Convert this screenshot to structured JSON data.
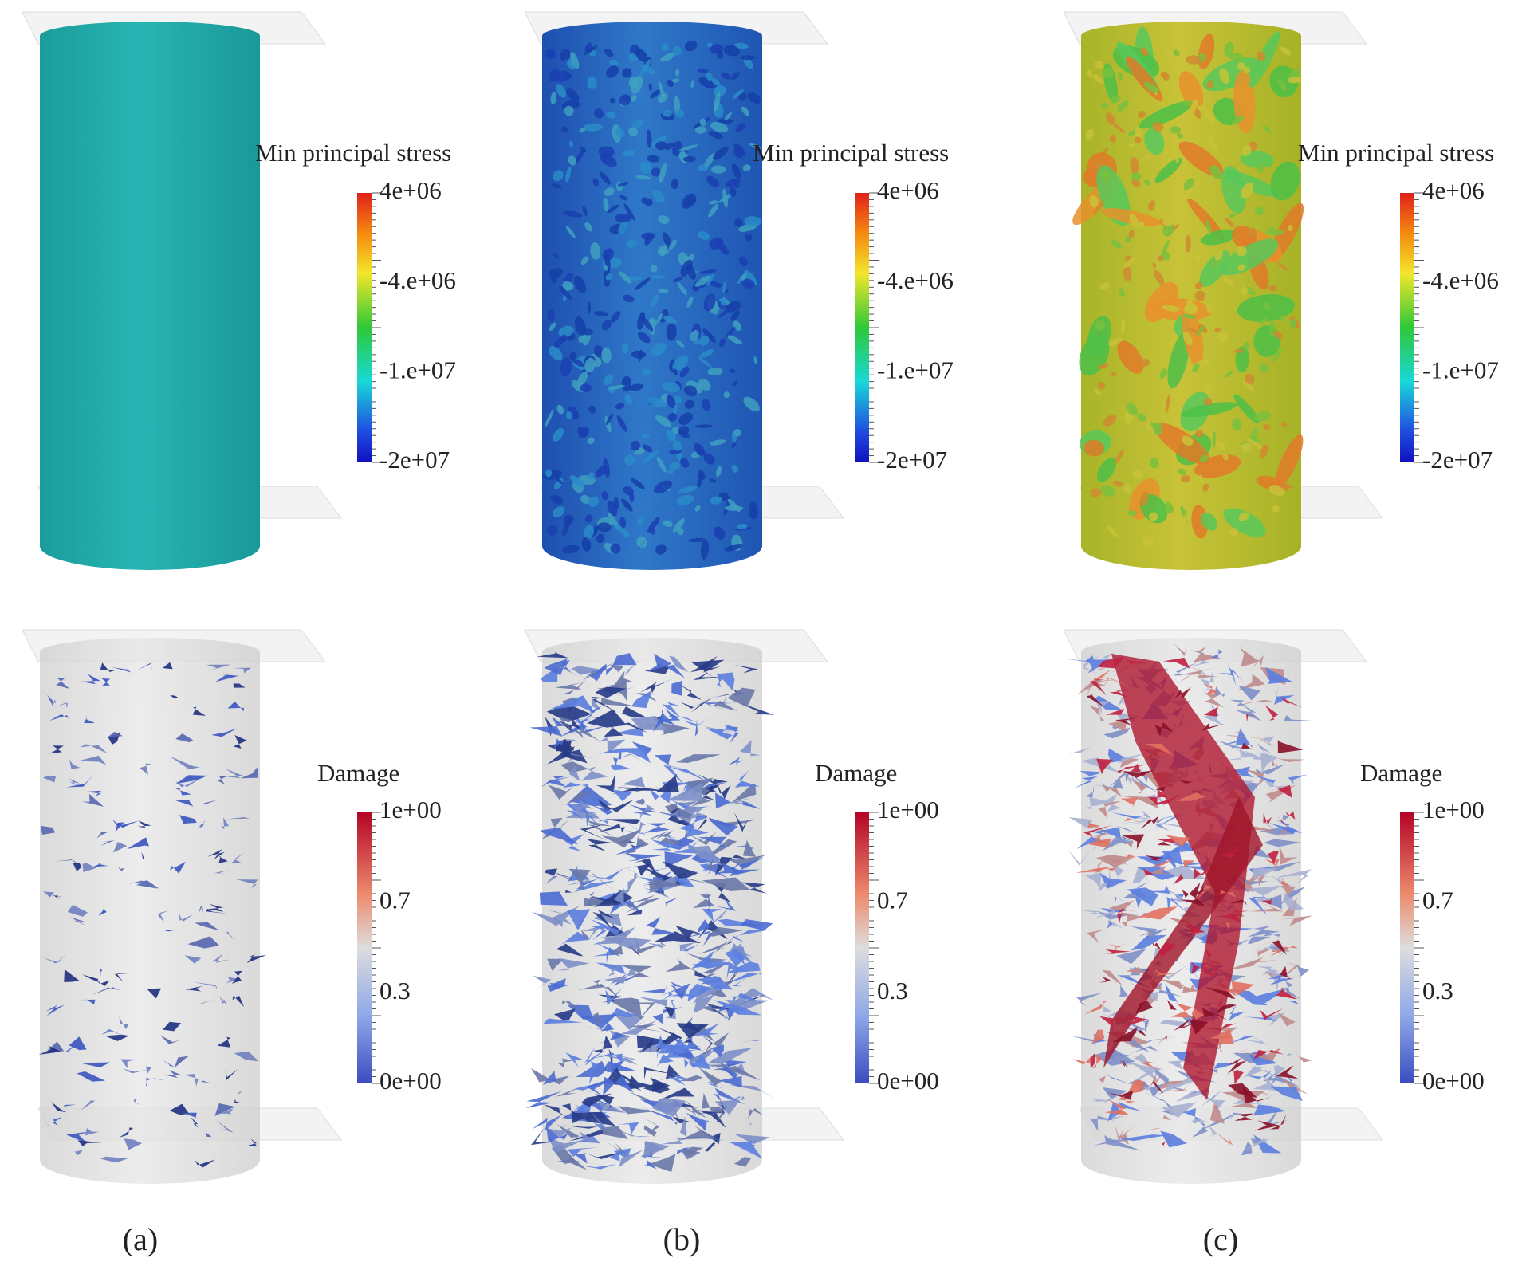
{
  "panels": [
    {
      "label": "(a)",
      "stress_legend": {
        "title": "Min principal stress",
        "ticks": [
          "4e+06",
          "-4.e+06",
          "-1.e+07",
          "-2e+07"
        ]
      },
      "damage_legend": {
        "title": "Damage",
        "ticks": [
          "1e+00",
          "0.7",
          "0.3",
          "0e+00"
        ]
      }
    },
    {
      "label": "(b)",
      "stress_legend": {
        "title": "Min principal stress",
        "ticks": [
          "4e+06",
          "-4.e+06",
          "-1.e+07",
          "-2e+07"
        ]
      },
      "damage_legend": {
        "title": "Damage",
        "ticks": [
          "1e+00",
          "0.7",
          "0.3",
          "0e+00"
        ]
      }
    },
    {
      "label": "(c)",
      "stress_legend": {
        "title": "Min principal stress",
        "ticks": [
          "4e+06",
          "-4.e+06",
          "-1.e+07",
          "-2e+07"
        ]
      },
      "damage_legend": {
        "title": "Damage",
        "ticks": [
          "1e+00",
          "0.7",
          "0.3",
          "0e+00"
        ]
      }
    }
  ]
}
